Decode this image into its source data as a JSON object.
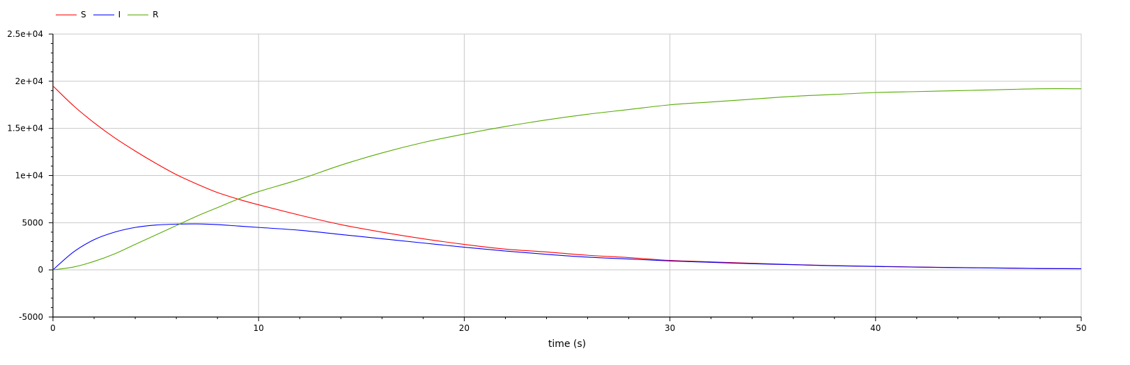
{
  "chart_data": {
    "type": "line",
    "title": "",
    "xlabel": "time (s)",
    "ylabel": "",
    "xlim": [
      0,
      50
    ],
    "ylim": [
      -5000,
      25000
    ],
    "xticks": [
      0,
      10,
      20,
      30,
      40,
      50
    ],
    "xtick_labels": [
      "0",
      "10",
      "20",
      "30",
      "40",
      "50"
    ],
    "yticks": [
      -5000,
      0,
      5000,
      10000,
      15000,
      20000,
      25000
    ],
    "ytick_labels": [
      "-5000",
      "0",
      "5000",
      "1e+04",
      "1.5e+04",
      "2e+04",
      "2.5e+04"
    ],
    "grid": true,
    "legend_position": "top-left",
    "x": [
      0,
      1,
      2,
      3,
      4,
      5,
      6,
      7,
      8,
      9,
      10,
      12,
      14,
      16,
      18,
      20,
      22,
      24,
      26,
      28,
      30,
      32,
      34,
      36,
      38,
      40,
      42,
      44,
      46,
      48,
      50
    ],
    "series": [
      {
        "name": "S",
        "color": "#ff0000",
        "values": [
          19500,
          17400,
          15600,
          14000,
          12600,
          11300,
          10100,
          9100,
          8200,
          7500,
          6900,
          5800,
          4800,
          4000,
          3300,
          2700,
          2200,
          1900,
          1550,
          1300,
          1000,
          850,
          700,
          560,
          450,
          380,
          300,
          250,
          200,
          150,
          130
        ]
      },
      {
        "name": "I",
        "color": "#0000ff",
        "values": [
          0,
          1900,
          3200,
          4000,
          4500,
          4750,
          4850,
          4870,
          4800,
          4650,
          4500,
          4200,
          3750,
          3300,
          2850,
          2400,
          2000,
          1650,
          1350,
          1150,
          950,
          800,
          650,
          550,
          430,
          360,
          290,
          240,
          190,
          140,
          120
        ]
      },
      {
        "name": "R",
        "color": "#55aa00",
        "values": [
          0,
          300,
          900,
          1700,
          2700,
          3700,
          4700,
          5700,
          6600,
          7500,
          8300,
          9600,
          11100,
          12400,
          13500,
          14400,
          15200,
          15900,
          16500,
          17000,
          17500,
          17800,
          18100,
          18400,
          18600,
          18800,
          18900,
          19000,
          19100,
          19200,
          19200
        ]
      }
    ]
  }
}
